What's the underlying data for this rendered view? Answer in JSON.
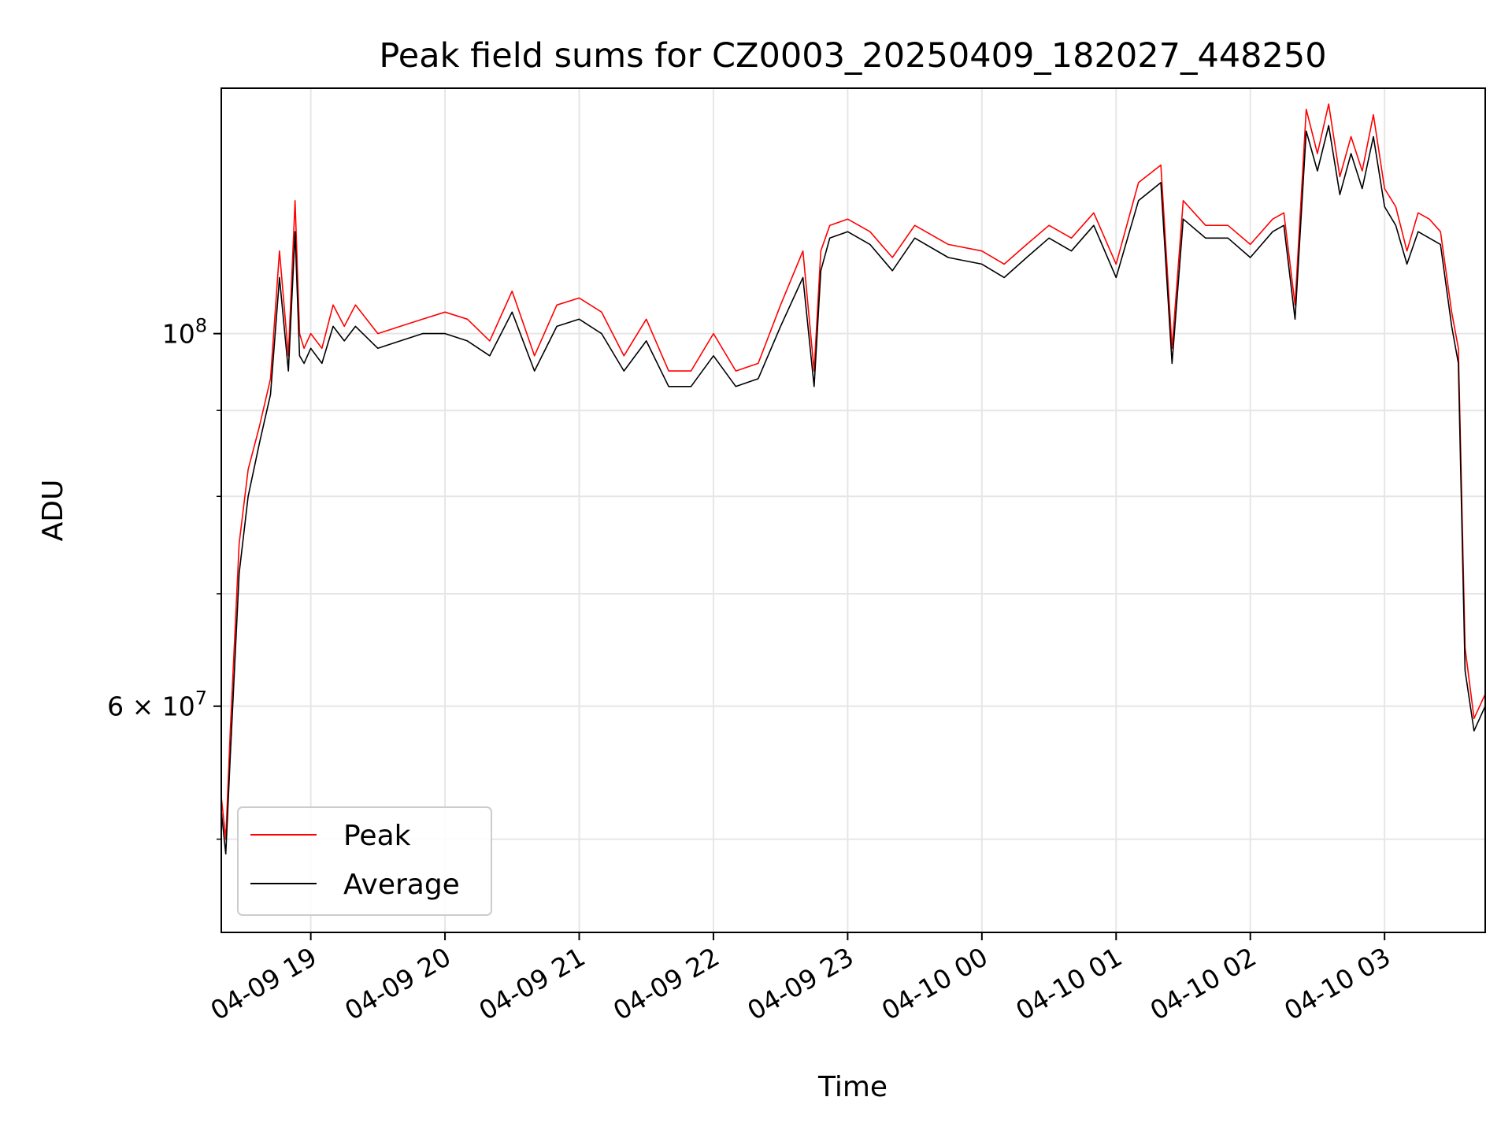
{
  "chart_data": {
    "type": "line",
    "title": "Peak field sums for CZ0003_20250409_182027_448250",
    "xlabel": "Time",
    "ylabel": "ADU",
    "y_scale": "log",
    "ylim": [
      44000000,
      140000000
    ],
    "x_range_hours": [
      "2025-04-09 18:20",
      "2025-04-10 03:45"
    ],
    "x_ticks": [
      {
        "label": "04-09 19",
        "time": "2025-04-09 19:00"
      },
      {
        "label": "04-09 20",
        "time": "2025-04-09 20:00"
      },
      {
        "label": "04-09 21",
        "time": "2025-04-09 21:00"
      },
      {
        "label": "04-09 22",
        "time": "2025-04-09 22:00"
      },
      {
        "label": "04-09 23",
        "time": "2025-04-09 23:00"
      },
      {
        "label": "04-10 00",
        "time": "2025-04-10 00:00"
      },
      {
        "label": "04-10 01",
        "time": "2025-04-10 01:00"
      },
      {
        "label": "04-10 02",
        "time": "2025-04-10 02:00"
      },
      {
        "label": "04-10 03",
        "time": "2025-04-10 03:00"
      }
    ],
    "y_major_ticks": [
      {
        "value": 60000000,
        "mantissa": "6",
        "exponent": "7"
      },
      {
        "value": 100000000,
        "mantissa": "",
        "exponent": "8"
      }
    ],
    "y_minor_ticks": [
      50000000,
      70000000,
      80000000,
      90000000
    ],
    "times_symbol": "×",
    "base": "10",
    "grid": true,
    "legend_position": "lower-left",
    "series": [
      {
        "name": "Peak",
        "color": "#ff0000",
        "x": [
          "2025-04-09 18:20",
          "2025-04-09 18:22",
          "2025-04-09 18:24",
          "2025-04-09 18:28",
          "2025-04-09 18:32",
          "2025-04-09 18:37",
          "2025-04-09 18:42",
          "2025-04-09 18:46",
          "2025-04-09 18:50",
          "2025-04-09 18:53",
          "2025-04-09 18:55",
          "2025-04-09 18:57",
          "2025-04-09 19:00",
          "2025-04-09 19:05",
          "2025-04-09 19:10",
          "2025-04-09 19:15",
          "2025-04-09 19:20",
          "2025-04-09 19:30",
          "2025-04-09 19:40",
          "2025-04-09 19:50",
          "2025-04-09 20:00",
          "2025-04-09 20:10",
          "2025-04-09 20:20",
          "2025-04-09 20:30",
          "2025-04-09 20:40",
          "2025-04-09 20:50",
          "2025-04-09 21:00",
          "2025-04-09 21:10",
          "2025-04-09 21:20",
          "2025-04-09 21:30",
          "2025-04-09 21:40",
          "2025-04-09 21:50",
          "2025-04-09 22:00",
          "2025-04-09 22:10",
          "2025-04-09 22:20",
          "2025-04-09 22:30",
          "2025-04-09 22:40",
          "2025-04-09 22:45",
          "2025-04-09 22:48",
          "2025-04-09 22:52",
          "2025-04-09 23:00",
          "2025-04-09 23:10",
          "2025-04-09 23:20",
          "2025-04-09 23:30",
          "2025-04-09 23:45",
          "2025-04-10 00:00",
          "2025-04-10 00:10",
          "2025-04-10 00:20",
          "2025-04-10 00:30",
          "2025-04-10 00:40",
          "2025-04-10 00:50",
          "2025-04-10 01:00",
          "2025-04-10 01:10",
          "2025-04-10 01:20",
          "2025-04-10 01:25",
          "2025-04-10 01:30",
          "2025-04-10 01:40",
          "2025-04-10 01:50",
          "2025-04-10 02:00",
          "2025-04-10 02:10",
          "2025-04-10 02:15",
          "2025-04-10 02:20",
          "2025-04-10 02:25",
          "2025-04-10 02:30",
          "2025-04-10 02:35",
          "2025-04-10 02:40",
          "2025-04-10 02:45",
          "2025-04-10 02:50",
          "2025-04-10 02:55",
          "2025-04-10 03:00",
          "2025-04-10 03:05",
          "2025-04-10 03:10",
          "2025-04-10 03:15",
          "2025-04-10 03:20",
          "2025-04-10 03:25",
          "2025-04-10 03:30",
          "2025-04-10 03:33",
          "2025-04-10 03:36",
          "2025-04-10 03:40",
          "2025-04-10 03:45"
        ],
        "y": [
          53000000,
          50000000,
          58000000,
          75000000,
          83000000,
          88000000,
          94000000,
          112000000,
          97000000,
          120000000,
          100000000,
          98000000,
          100000000,
          98000000,
          104000000,
          101000000,
          104000000,
          100000000,
          101000000,
          102000000,
          103000000,
          102000000,
          99000000,
          106000000,
          97000000,
          104000000,
          105000000,
          103000000,
          97000000,
          102000000,
          95000000,
          95000000,
          100000000,
          95000000,
          96000000,
          104000000,
          112000000,
          95000000,
          112000000,
          116000000,
          117000000,
          115000000,
          111000000,
          116000000,
          113000000,
          112000000,
          110000000,
          113000000,
          116000000,
          114000000,
          118000000,
          110000000,
          123000000,
          126000000,
          98000000,
          120000000,
          116000000,
          116000000,
          113000000,
          117000000,
          118000000,
          104000000,
          136000000,
          128000000,
          137000000,
          124000000,
          131000000,
          125000000,
          135000000,
          122000000,
          119000000,
          112000000,
          118000000,
          117000000,
          115000000,
          103000000,
          98000000,
          65000000,
          59000000,
          61000000
        ]
      },
      {
        "name": "Average",
        "color": "#000000",
        "x": [
          "2025-04-09 18:20",
          "2025-04-09 18:22",
          "2025-04-09 18:24",
          "2025-04-09 18:28",
          "2025-04-09 18:32",
          "2025-04-09 18:37",
          "2025-04-09 18:42",
          "2025-04-09 18:46",
          "2025-04-09 18:50",
          "2025-04-09 18:53",
          "2025-04-09 18:55",
          "2025-04-09 18:57",
          "2025-04-09 19:00",
          "2025-04-09 19:05",
          "2025-04-09 19:10",
          "2025-04-09 19:15",
          "2025-04-09 19:20",
          "2025-04-09 19:30",
          "2025-04-09 19:40",
          "2025-04-09 19:50",
          "2025-04-09 20:00",
          "2025-04-09 20:10",
          "2025-04-09 20:20",
          "2025-04-09 20:30",
          "2025-04-09 20:40",
          "2025-04-09 20:50",
          "2025-04-09 21:00",
          "2025-04-09 21:10",
          "2025-04-09 21:20",
          "2025-04-09 21:30",
          "2025-04-09 21:40",
          "2025-04-09 21:50",
          "2025-04-09 22:00",
          "2025-04-09 22:10",
          "2025-04-09 22:20",
          "2025-04-09 22:30",
          "2025-04-09 22:40",
          "2025-04-09 22:45",
          "2025-04-09 22:48",
          "2025-04-09 22:52",
          "2025-04-09 23:00",
          "2025-04-09 23:10",
          "2025-04-09 23:20",
          "2025-04-09 23:30",
          "2025-04-09 23:45",
          "2025-04-10 00:00",
          "2025-04-10 00:10",
          "2025-04-10 00:20",
          "2025-04-10 00:30",
          "2025-04-10 00:40",
          "2025-04-10 00:50",
          "2025-04-10 01:00",
          "2025-04-10 01:10",
          "2025-04-10 01:20",
          "2025-04-10 01:25",
          "2025-04-10 01:30",
          "2025-04-10 01:40",
          "2025-04-10 01:50",
          "2025-04-10 02:00",
          "2025-04-10 02:10",
          "2025-04-10 02:15",
          "2025-04-10 02:20",
          "2025-04-10 02:25",
          "2025-04-10 02:30",
          "2025-04-10 02:35",
          "2025-04-10 02:40",
          "2025-04-10 02:45",
          "2025-04-10 02:50",
          "2025-04-10 02:55",
          "2025-04-10 03:00",
          "2025-04-10 03:05",
          "2025-04-10 03:10",
          "2025-04-10 03:15",
          "2025-04-10 03:20",
          "2025-04-10 03:25",
          "2025-04-10 03:30",
          "2025-04-10 03:33",
          "2025-04-10 03:36",
          "2025-04-10 03:40",
          "2025-04-10 03:45"
        ],
        "y": [
          52000000,
          49000000,
          56000000,
          72000000,
          80000000,
          86000000,
          92000000,
          108000000,
          95000000,
          115000000,
          97000000,
          96000000,
          98000000,
          96000000,
          101000000,
          99000000,
          101000000,
          98000000,
          99000000,
          100000000,
          100000000,
          99000000,
          97000000,
          103000000,
          95000000,
          101000000,
          102000000,
          100000000,
          95000000,
          99000000,
          93000000,
          93000000,
          97000000,
          93000000,
          94000000,
          101000000,
          108000000,
          93000000,
          109000000,
          114000000,
          115000000,
          113000000,
          109000000,
          114000000,
          111000000,
          110000000,
          108000000,
          111000000,
          114000000,
          112000000,
          116000000,
          108000000,
          120000000,
          123000000,
          96000000,
          117000000,
          114000000,
          114000000,
          111000000,
          115000000,
          116000000,
          102000000,
          132000000,
          125000000,
          133000000,
          121000000,
          128000000,
          122000000,
          131000000,
          119000000,
          116000000,
          110000000,
          115000000,
          114000000,
          113000000,
          101000000,
          96000000,
          63000000,
          58000000,
          60000000
        ]
      }
    ]
  }
}
